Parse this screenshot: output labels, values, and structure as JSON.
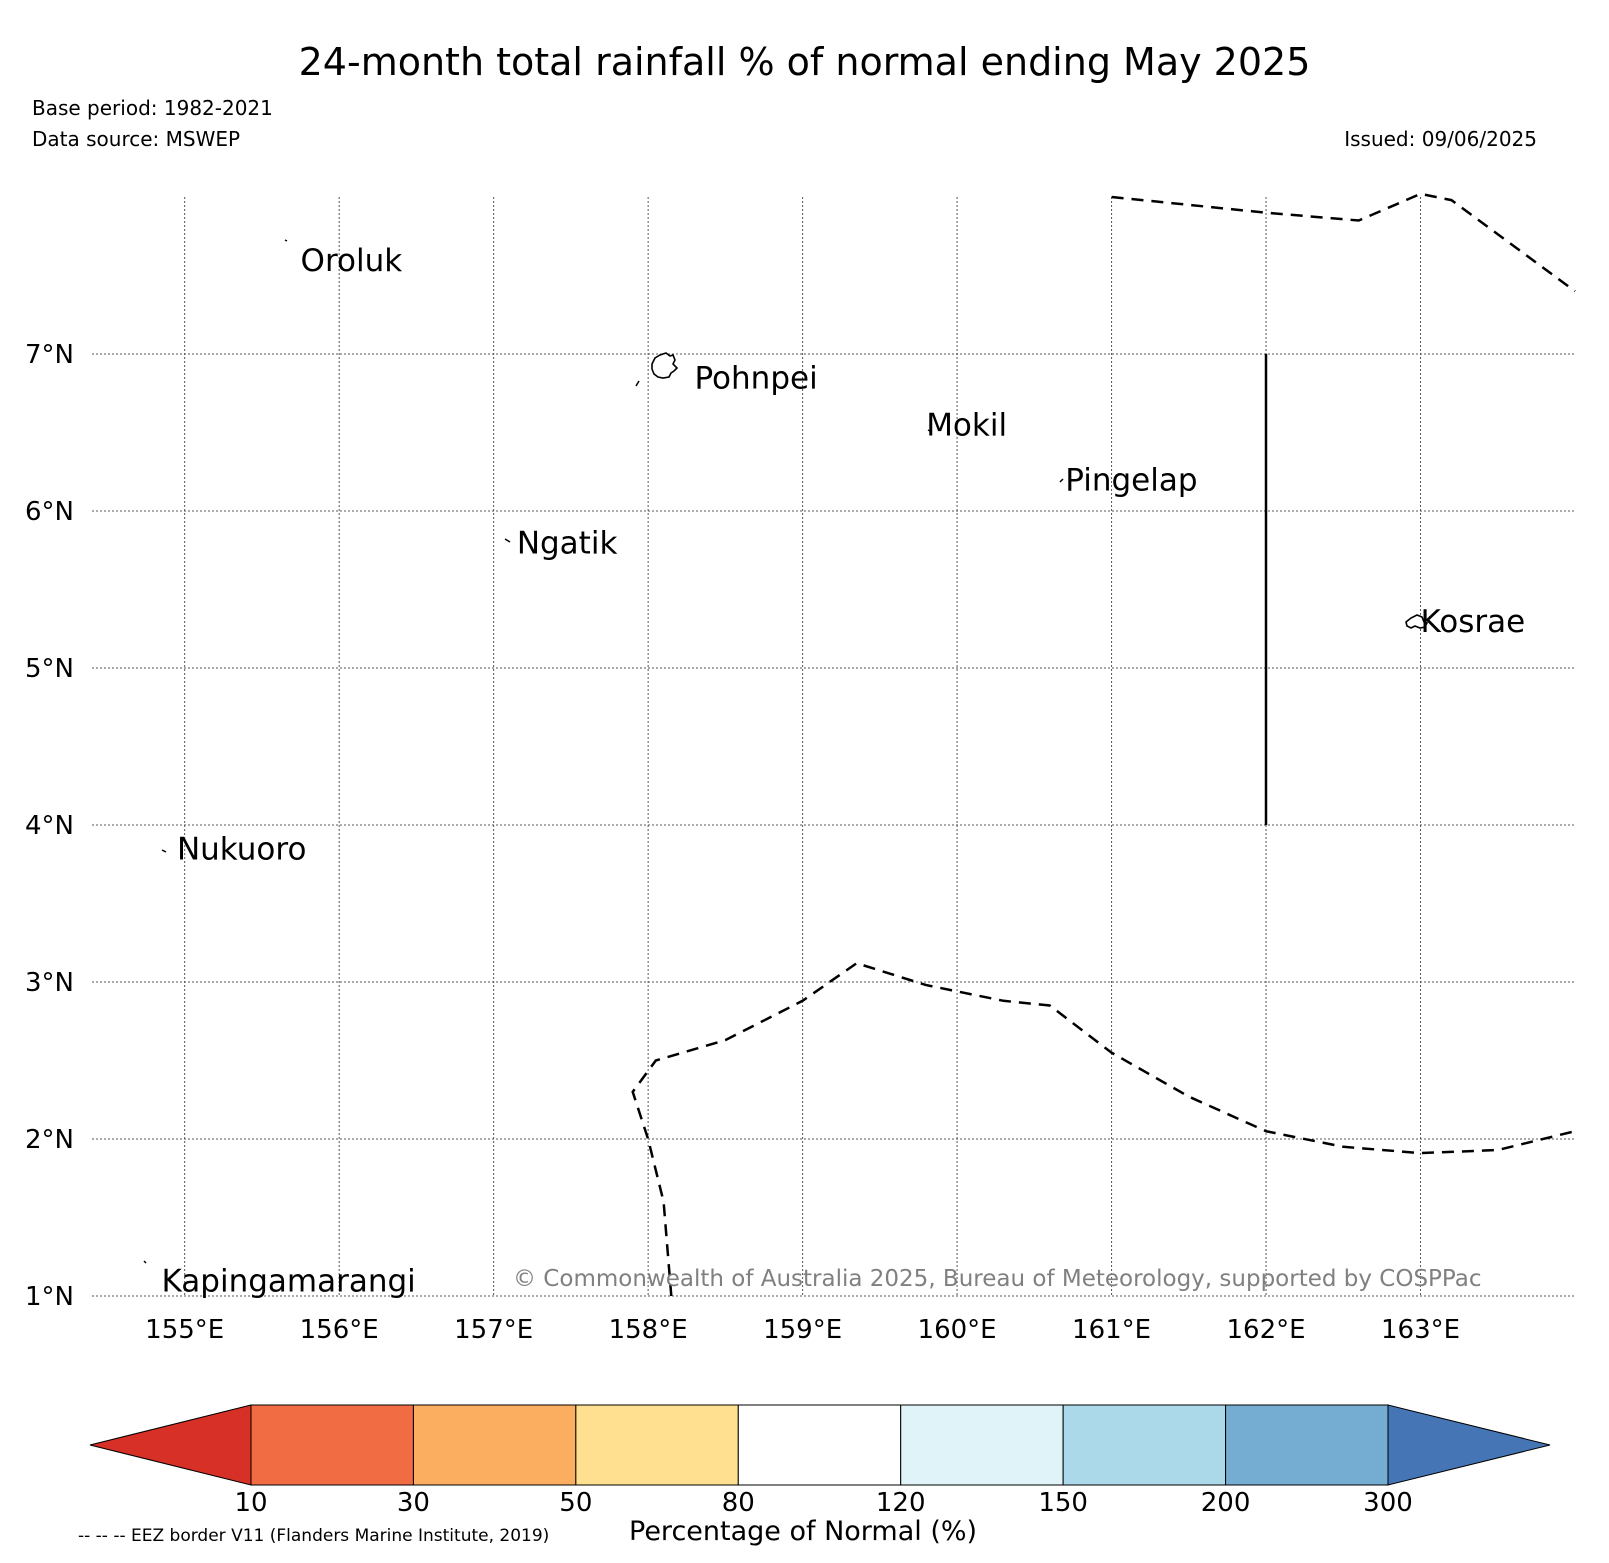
{
  "header": {
    "title": "24-month total rainfall % of normal ending May 2025",
    "base_period": "Base period: 1982-2021",
    "data_source": "Data source: MSWEP",
    "issued": "Issued: 09/06/2025"
  },
  "map": {
    "lon_range": [
      154.4,
      164.0
    ],
    "lat_range": [
      1.0,
      8.0
    ],
    "lon_ticks": [
      {
        "value": 155,
        "label": "155°E"
      },
      {
        "value": 156,
        "label": "156°E"
      },
      {
        "value": 157,
        "label": "157°E"
      },
      {
        "value": 158,
        "label": "158°E"
      },
      {
        "value": 159,
        "label": "159°E"
      },
      {
        "value": 160,
        "label": "160°E"
      },
      {
        "value": 161,
        "label": "161°E"
      },
      {
        "value": 162,
        "label": "162°E"
      },
      {
        "value": 163,
        "label": "163°E"
      }
    ],
    "lat_ticks": [
      {
        "value": 1,
        "label": "1°N"
      },
      {
        "value": 2,
        "label": "2°N"
      },
      {
        "value": 3,
        "label": "3°N"
      },
      {
        "value": 4,
        "label": "4°N"
      },
      {
        "value": 5,
        "label": "5°N"
      },
      {
        "value": 6,
        "label": "6°N"
      },
      {
        "value": 7,
        "label": "7°N"
      }
    ],
    "grid": true,
    "places": [
      {
        "name": "Oroluk",
        "lon": 155.75,
        "lat": 7.6
      },
      {
        "name": "Pohnpei",
        "lon": 158.3,
        "lat": 6.85
      },
      {
        "name": "Mokil",
        "lon": 159.8,
        "lat": 6.55
      },
      {
        "name": "Pingelap",
        "lon": 160.7,
        "lat": 6.2
      },
      {
        "name": "Ngatik",
        "lon": 157.15,
        "lat": 5.8
      },
      {
        "name": "Kosrae",
        "lon": 163.0,
        "lat": 5.3
      },
      {
        "name": "Nukuoro",
        "lon": 154.95,
        "lat": 3.85
      },
      {
        "name": "Kapingamarangi",
        "lon": 154.85,
        "lat": 1.1
      }
    ],
    "eez_top": [
      [
        161.0,
        8.0
      ],
      [
        162.0,
        7.9
      ],
      [
        162.6,
        7.85
      ],
      [
        163.0,
        8.02
      ],
      [
        163.2,
        7.98
      ],
      [
        164.0,
        7.4
      ]
    ],
    "eez_south": [
      [
        158.15,
        1.0
      ],
      [
        158.1,
        1.6
      ],
      [
        158.0,
        2.0
      ],
      [
        157.9,
        2.3
      ],
      [
        158.05,
        2.5
      ],
      [
        158.5,
        2.63
      ],
      [
        159.0,
        2.88
      ],
      [
        159.35,
        3.12
      ],
      [
        159.8,
        2.98
      ],
      [
        160.3,
        2.88
      ],
      [
        160.6,
        2.85
      ],
      [
        161.0,
        2.55
      ],
      [
        161.5,
        2.27
      ],
      [
        162.0,
        2.05
      ],
      [
        162.5,
        1.95
      ],
      [
        163.0,
        1.91
      ],
      [
        163.5,
        1.93
      ],
      [
        164.0,
        2.05
      ]
    ],
    "eez_vertical": [
      [
        162.0,
        7.0
      ],
      [
        162.0,
        4.0
      ]
    ],
    "copyright": "© Commonwealth of Australia 2025, Bureau of Meteorology, supported by COSPPac"
  },
  "colorbar": {
    "title": "Percentage of Normal (%)",
    "boundaries": [
      "10",
      "30",
      "50",
      "80",
      "120",
      "150",
      "200",
      "300"
    ],
    "colors": [
      "#f26c43",
      "#fcae60",
      "#fee090",
      "#ffffff",
      "#e0f3f8",
      "#abd9e9",
      "#74add1"
    ],
    "under_color": "#d73027",
    "over_color": "#4575b4"
  },
  "footer": {
    "eez_note": "-- -- -- EEZ border V11 (Flanders Marine Institute, 2019)"
  }
}
